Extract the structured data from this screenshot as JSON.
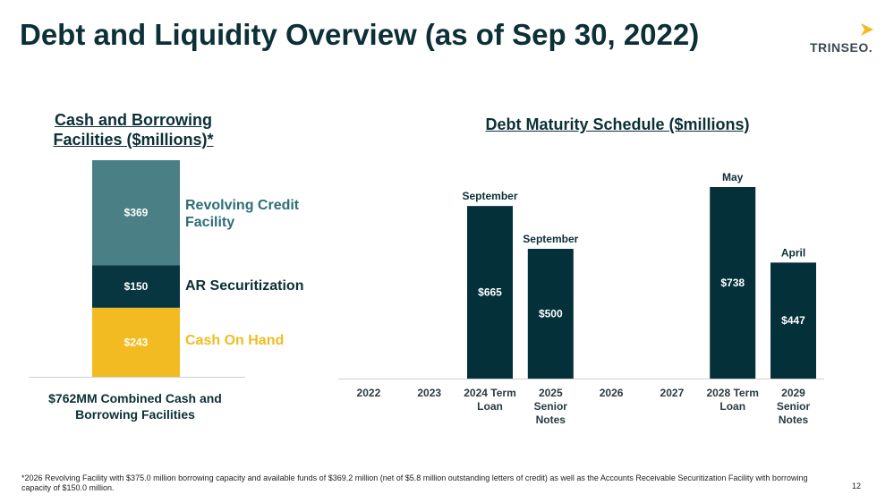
{
  "title": "Debt and Liquidity Overview (as of Sep 30, 2022)",
  "logo": {
    "text": "TRINSEO."
  },
  "colors": {
    "dark": "#0b3036",
    "teal": "#4b7f86",
    "gold": "#f2bb22",
    "bar": "#04303a"
  },
  "left_panel": {
    "title": "Cash and Borrowing Facilities ($millions)*",
    "combined_label": "$762MM Combined Cash and Borrowing Facilities"
  },
  "right_panel": {
    "title": "Debt Maturity Schedule ($millions)"
  },
  "chart_data": [
    {
      "type": "bar",
      "stacked": true,
      "title": "Cash and Borrowing Facilities ($millions)*",
      "categories": [
        "$762MM Combined Cash and Borrowing Facilities"
      ],
      "series": [
        {
          "name": "Cash On Hand",
          "values": [
            243
          ],
          "label": "$243",
          "color": "#f2bb22",
          "legend_color": "#f2bb22"
        },
        {
          "name": "AR Securitization",
          "values": [
            150
          ],
          "label": "$150",
          "color": "#073640",
          "legend_color": "#0b3036"
        },
        {
          "name": "Revolving Credit Facility",
          "values": [
            369
          ],
          "label": "$369",
          "color": "#4b7f86",
          "legend_color": "#2d6e75"
        }
      ],
      "legend_position": "right",
      "grid": false
    },
    {
      "type": "bar",
      "title": "Debt Maturity Schedule ($millions)",
      "categories": [
        "2022",
        "2023",
        "2024 Term Loan",
        "2025 Senior Notes",
        "2026",
        "2027",
        "2028 Term Loan",
        "2029 Senior Notes"
      ],
      "values": [
        null,
        null,
        665,
        500,
        null,
        null,
        738,
        447
      ],
      "value_labels": [
        "",
        "",
        "$665",
        "$500",
        "",
        "",
        "$738",
        "$447"
      ],
      "top_annotations": [
        "",
        "",
        "September",
        "September",
        "",
        "",
        "May",
        "April"
      ],
      "ylim": [
        0,
        750
      ],
      "grid": false
    }
  ],
  "footnote": "*2026 Revolving Facility with $375.0 million borrowing capacity and available funds of $369.2 million (net of $5.8 million outstanding letters of credit) as well as the Accounts Receivable Securitization Facility with borrowing capacity of $150.0 million.",
  "page_number": "12"
}
